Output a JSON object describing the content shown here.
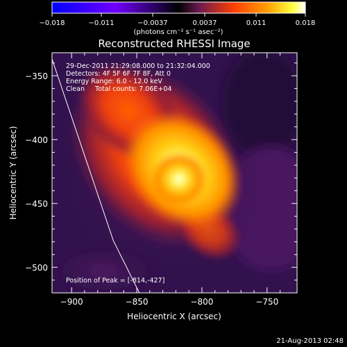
{
  "chart_data": {
    "type": "heatmap",
    "title": "Reconstructed RHESSI Image",
    "xlabel": "Heliocentric X (arcsec)",
    "ylabel": "Heliocentric Y (arcsec)",
    "xlim": [
      -915,
      -727
    ],
    "ylim": [
      -520,
      -332
    ],
    "x_ticks": [
      -900,
      -850,
      -800,
      -750
    ],
    "y_ticks": [
      -350,
      -400,
      -450,
      -500
    ],
    "x_tick_labels": [
      "−900",
      "−850",
      "−800",
      "−750"
    ],
    "y_tick_labels": [
      "−350",
      "−400",
      "−450",
      "−500"
    ],
    "colorbar": {
      "ticks": [
        -0.018,
        -0.011,
        -0.0037,
        0.0037,
        0.011,
        0.018
      ],
      "tick_labels": [
        "−0.018",
        "−0.011",
        "−0.0037",
        "0.0037",
        "0.011",
        "0.018"
      ],
      "unit_label": "(photons cm⁻² s⁻¹ asec⁻²)",
      "colors": [
        "#0000ff",
        "#6a00ff",
        "#000000",
        "#8a2060",
        "#ff7000",
        "#ffff40",
        "#ffffff"
      ]
    },
    "annotations": [
      "29-Dec-2011 21:29:08.000 to 21:32:04.000",
      "Detectors: 4F 5F 6F 7F 8F, Att 0",
      "Energy Range: 6.0 - 12.0 keV",
      "Clean     Total counts: 7.06E+04"
    ],
    "peak_label": "Position of Peak = [-814,-427]",
    "peak": [
      -814,
      -427
    ],
    "limb": [
      [
        -916,
        -334
      ],
      [
        -868,
        -479
      ],
      [
        -848,
        -520
      ]
    ],
    "timestamp": "21-Aug-2013 02:48"
  }
}
